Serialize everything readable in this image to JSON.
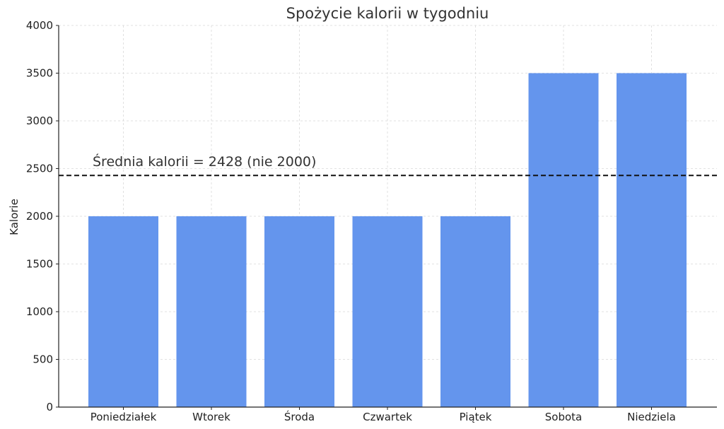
{
  "chart_data": {
    "type": "bar",
    "title": "Spożycie kalorii w tygodniu",
    "xlabel": "",
    "ylabel": "Kalorie",
    "categories": [
      "Poniedziałek",
      "Wtorek",
      "Środa",
      "Czwartek",
      "Piątek",
      "Sobota",
      "Niedziela"
    ],
    "values": [
      2000,
      2000,
      2000,
      2000,
      2000,
      3500,
      3500
    ],
    "ylim": [
      0,
      4000
    ],
    "yticks": [
      0,
      500,
      1000,
      1500,
      2000,
      2500,
      3000,
      3500,
      4000
    ],
    "grid": true,
    "bar_color": "#6495ED",
    "reference_line": {
      "value": 2428,
      "style": "dashed",
      "color": "#111111",
      "label": "Średnia kalorii = 2428 (nie 2000)"
    }
  }
}
